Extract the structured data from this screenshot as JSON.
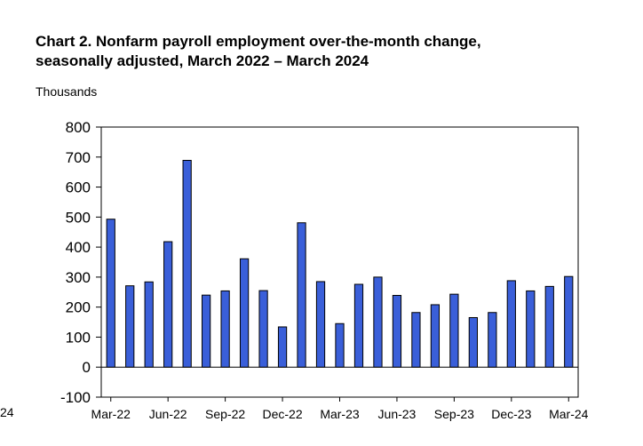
{
  "page": {
    "title_line1": "Chart 2. Nonfarm payroll employment over-the-month change,",
    "title_line2": "seasonally adjusted, March 2022 – March 2024",
    "edge_fragment": "24"
  },
  "chart_data": {
    "type": "bar",
    "title": "Chart 2. Nonfarm payroll employment over-the-month change, seasonally adjusted, March 2022 – March 2024",
    "ylabel": "Thousands",
    "xlabel": "",
    "ylim": [
      -100,
      800
    ],
    "yticks": [
      800,
      700,
      600,
      500,
      400,
      300,
      200,
      100,
      0,
      -100
    ],
    "grid": false,
    "bar_color": "#3a5fd9",
    "categories": [
      "Mar-22",
      "Apr-22",
      "May-22",
      "Jun-22",
      "Jul-22",
      "Aug-22",
      "Sep-22",
      "Oct-22",
      "Nov-22",
      "Dec-22",
      "Jan-23",
      "Feb-23",
      "Mar-23",
      "Apr-23",
      "May-23",
      "Jun-23",
      "Jul-23",
      "Aug-23",
      "Sep-23",
      "Oct-23",
      "Nov-23",
      "Dec-23",
      "Jan-24",
      "Feb-24",
      "Mar-24"
    ],
    "values": [
      493,
      271,
      284,
      418,
      689,
      240,
      254,
      361,
      255,
      134,
      481,
      285,
      145,
      276,
      300,
      239,
      182,
      208,
      243,
      165,
      182,
      288,
      254,
      269,
      302
    ],
    "xtick_labels": [
      "Mar-22",
      "Jun-22",
      "Sep-22",
      "Dec-22",
      "Mar-23",
      "Jun-23",
      "Sep-23",
      "Dec-23",
      "Mar-24"
    ],
    "xtick_every": 3
  }
}
